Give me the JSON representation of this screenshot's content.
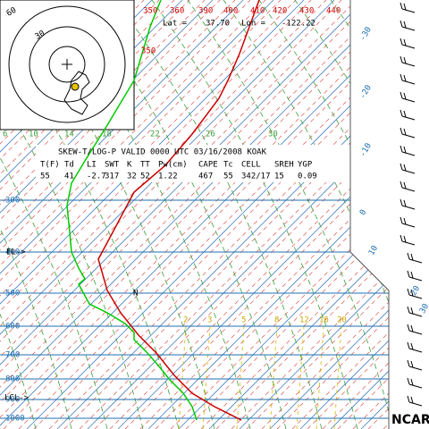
{
  "diagram": {
    "theta_labels": [
      "350",
      "360",
      "390",
      "400",
      "410",
      "420",
      "430",
      "440"
    ],
    "theta_side_label": "350",
    "location": {
      "lat_label": "Lat =",
      "lat": "37.70",
      "lon_label": "Lon =",
      "lon": "-122.22"
    },
    "inset_labels": [
      "30",
      "60"
    ],
    "isotherm_labels": [
      "-30",
      "-20",
      "-10",
      "0",
      "10",
      "20",
      "30"
    ],
    "adiabat_labels": [
      "6",
      "10",
      "14",
      "18",
      "22",
      "26",
      "30"
    ],
    "title": "SKEW-T/LOG-P VALID 0000 UTC 03/16/2008 KOAK",
    "index_header": [
      "T(F)",
      "Td",
      "LI",
      "SWT",
      "K",
      "TT",
      "Pw(cm)",
      "CAPE",
      "Tc",
      "CELL",
      "SREH",
      "YGP"
    ],
    "index_values": [
      "55",
      "41",
      "-2.7",
      "317",
      "32",
      "52",
      "1.22",
      "467",
      "55",
      "342/17",
      "15",
      "0.09"
    ],
    "pressure_labels": [
      "300",
      "400",
      "500",
      "600",
      "700",
      "800",
      "900",
      "1000"
    ],
    "mixing_labels": [
      "2",
      "3",
      "5",
      "8",
      "12",
      "16",
      "20"
    ],
    "el_label": "EL->",
    "lcl_label": "LCL->",
    "n_label": "N",
    "credit": "NCAR"
  }
}
